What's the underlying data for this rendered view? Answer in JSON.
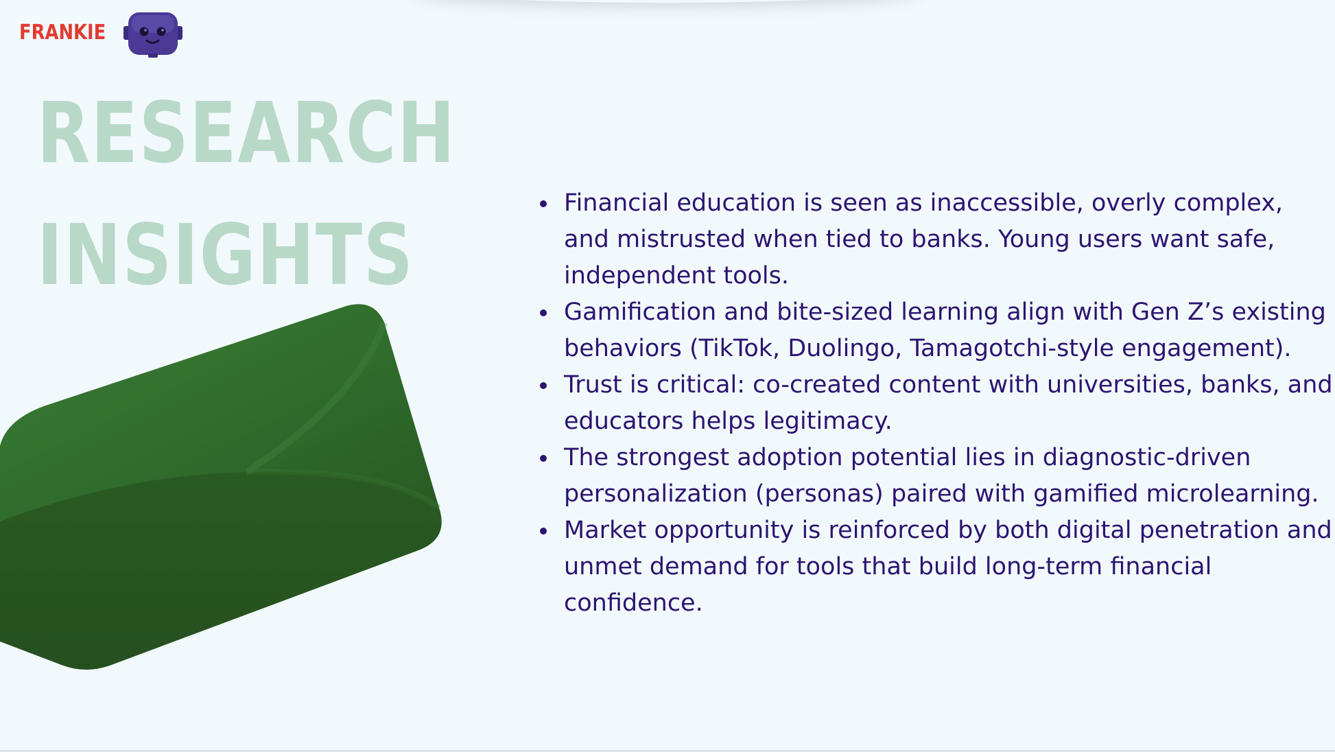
{
  "brand": {
    "name": "FRANKIE",
    "mascot_icon": "robot-mascot-icon"
  },
  "slide": {
    "title_line1": "RESEARCH",
    "title_line2": "INSIGHTS",
    "decoration": "green-3d-shape",
    "insights": [
      "Financial education is seen as inaccessible, overly complex, and mistrusted when tied to banks. Young users want safe, independent tools.",
      "Gamification and bite-sized learning align with Gen Z’s existing behaviors (TikTok, Duolingo, Tamagotchi-style engagement).",
      "Trust is critical: co-created content with universities, banks, and educators helps legitimacy.",
      "The strongest adoption potential lies in diagnostic-driven personalization (personas) paired with gamified microlearning.",
      "Market opportunity is reinforced by both digital penetration and unmet demand for tools that build long-term financial confidence."
    ]
  },
  "colors": {
    "background": "#f2f9fc",
    "brand": "#e23a32",
    "heading": "#b8d8c8",
    "body_text": "#2c1470",
    "shape_green": "#2e6b2a"
  }
}
